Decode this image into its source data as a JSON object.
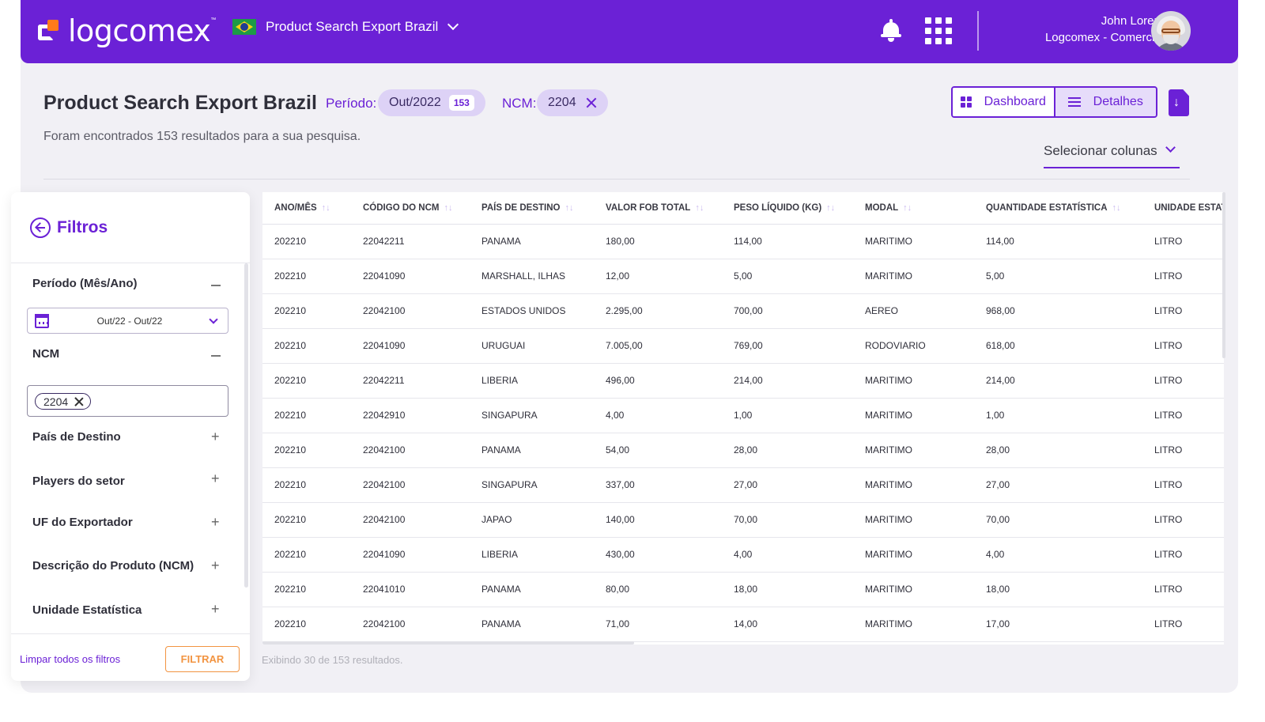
{
  "header": {
    "logo_text": "logcomex",
    "logo_tm": "™",
    "product": "Product Search Export Brazil",
    "user_name": "John Lorem",
    "user_org": "Logcomex - Comercial"
  },
  "colors": {
    "brand": "#6b21d6",
    "accent": "#ff7a1a",
    "filter_button": "#f29441"
  },
  "page": {
    "title": "Product Search Export Brazil",
    "periodo_label": "Período:",
    "periodo_value": "Out/2022",
    "periodo_count": "153",
    "ncm_label": "NCM:",
    "ncm_value": "2204",
    "results_text": "Foram encontrados 153 resultados para a sua pesquisa.",
    "view_dashboard": "Dashboard",
    "view_detalhes": "Detalhes",
    "select_columns": "Selecionar colunas"
  },
  "filters": {
    "title": "Filtros",
    "periodo_section": "Período (Mês/Ano)",
    "periodo_range": "Out/22 - Out/22",
    "ncm_section": "NCM",
    "ncm_tag": "2204",
    "pais_destino": "País de Destino",
    "players": "Players do setor",
    "uf_exportador": "UF do Exportador",
    "descricao_produto": "Descrição do Produto (NCM)",
    "unidade_estatistica": "Unidade Estatística",
    "plus": "+",
    "clear_all": "Limpar todos os filtros",
    "apply": "FILTRAR"
  },
  "table": {
    "columns": [
      "ANO/MÊS",
      "CÓDIGO DO NCM",
      "PAÍS DE DESTINO",
      "VALOR FOB TOTAL",
      "PESO LÍQUIDO (KG)",
      "MODAL",
      "QUANTIDADE ESTATÍSTICA",
      "UNIDADE ESTATÍSTICA"
    ],
    "sort_glyph": "↑↓",
    "rows": [
      [
        "202210",
        "22042211",
        "PANAMA",
        "180,00",
        "114,00",
        "MARITIMO",
        "114,00",
        "LITRO"
      ],
      [
        "202210",
        "22041090",
        "MARSHALL, ILHAS",
        "12,00",
        "5,00",
        "MARITIMO",
        "5,00",
        "LITRO"
      ],
      [
        "202210",
        "22042100",
        "ESTADOS UNIDOS",
        "2.295,00",
        "700,00",
        "AEREO",
        "968,00",
        "LITRO"
      ],
      [
        "202210",
        "22041090",
        "URUGUAI",
        "7.005,00",
        "769,00",
        "RODOVIARIO",
        "618,00",
        "LITRO"
      ],
      [
        "202210",
        "22042211",
        "LIBERIA",
        "496,00",
        "214,00",
        "MARITIMO",
        "214,00",
        "LITRO"
      ],
      [
        "202210",
        "22042910",
        "SINGAPURA",
        "4,00",
        "1,00",
        "MARITIMO",
        "1,00",
        "LITRO"
      ],
      [
        "202210",
        "22042100",
        "PANAMA",
        "54,00",
        "28,00",
        "MARITIMO",
        "28,00",
        "LITRO"
      ],
      [
        "202210",
        "22042100",
        "SINGAPURA",
        "337,00",
        "27,00",
        "MARITIMO",
        "27,00",
        "LITRO"
      ],
      [
        "202210",
        "22042100",
        "JAPAO",
        "140,00",
        "70,00",
        "MARITIMO",
        "70,00",
        "LITRO"
      ],
      [
        "202210",
        "22041090",
        "LIBERIA",
        "430,00",
        "4,00",
        "MARITIMO",
        "4,00",
        "LITRO"
      ],
      [
        "202210",
        "22041010",
        "PANAMA",
        "80,00",
        "18,00",
        "MARITIMO",
        "18,00",
        "LITRO"
      ],
      [
        "202210",
        "22042100",
        "PANAMA",
        "71,00",
        "14,00",
        "MARITIMO",
        "17,00",
        "LITRO"
      ]
    ],
    "footer": "Exibindo 30 de 153 resultados."
  }
}
